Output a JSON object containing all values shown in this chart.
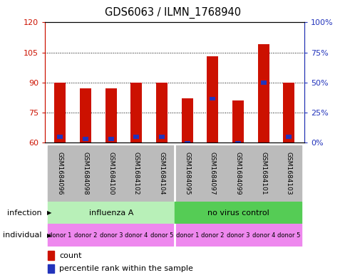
{
  "title": "GDS6063 / ILMN_1768940",
  "samples": [
    "GSM1684096",
    "GSM1684098",
    "GSM1684100",
    "GSM1684102",
    "GSM1684104",
    "GSM1684095",
    "GSM1684097",
    "GSM1684099",
    "GSM1684101",
    "GSM1684103"
  ],
  "red_values": [
    90,
    87,
    87,
    90,
    90,
    82,
    103,
    81,
    109,
    90
  ],
  "blue_values": [
    63,
    62,
    62,
    63,
    63,
    60,
    82,
    60,
    90,
    63
  ],
  "y_min": 60,
  "y_max": 120,
  "y_ticks": [
    60,
    75,
    90,
    105,
    120
  ],
  "y_right_tick_labels": [
    "0%",
    "25%",
    "50%",
    "75%",
    "100%"
  ],
  "infection_labels": [
    "influenza A",
    "no virus control"
  ],
  "infection_colors": [
    "#b8f0b8",
    "#55cc55"
  ],
  "individual_labels": [
    "donor 1",
    "donor 2",
    "donor 3",
    "donor 4",
    "donor 5",
    "donor 1",
    "donor 2",
    "donor 3",
    "donor 4",
    "donor 5"
  ],
  "individual_color": "#ee88ee",
  "bar_color": "#cc1100",
  "blue_color": "#2233bb",
  "sample_bg_color": "#bbbbbb",
  "figsize": [
    4.85,
    3.93
  ],
  "dpi": 100
}
